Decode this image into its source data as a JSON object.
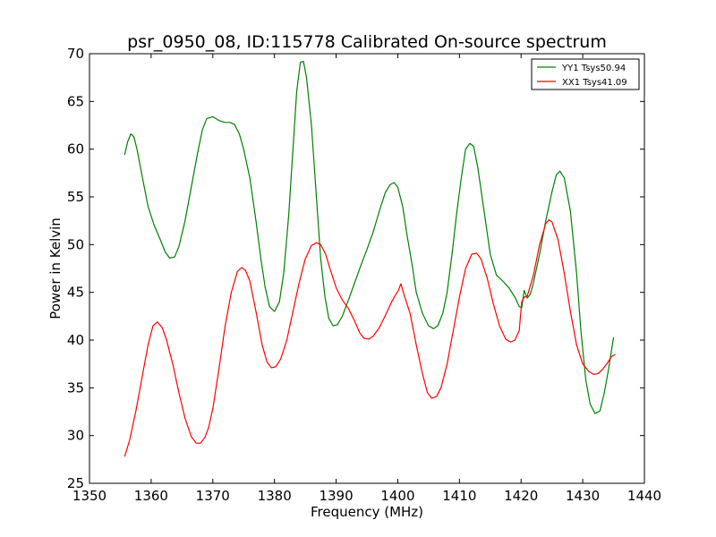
{
  "chart_data": {
    "type": "line",
    "title": "psr_0950_08, ID:115778 Calibrated On-source spectrum",
    "xlabel": "Frequency (MHz)",
    "ylabel": "Power in Kelvin",
    "xlim": [
      1350,
      1440
    ],
    "ylim": [
      25,
      70
    ],
    "xticks": [
      1350,
      1360,
      1370,
      1380,
      1390,
      1400,
      1410,
      1420,
      1430,
      1440
    ],
    "yticks": [
      25,
      30,
      35,
      40,
      45,
      50,
      55,
      60,
      65,
      70
    ],
    "grid": false,
    "legend_position": "top-right",
    "series": [
      {
        "name": "YY1 Tsys50.94",
        "color": "#008000",
        "x": [
          1355.7,
          1356.2,
          1356.7,
          1357.2,
          1357.7,
          1358.5,
          1359.5,
          1360.5,
          1361.5,
          1362.3,
          1363.0,
          1363.8,
          1364.5,
          1365.5,
          1366.5,
          1367.5,
          1368.3,
          1369.0,
          1370.0,
          1371.0,
          1372.0,
          1372.8,
          1373.5,
          1374.3,
          1375.0,
          1376.0,
          1377.0,
          1377.8,
          1378.5,
          1379.2,
          1380.0,
          1380.8,
          1381.5,
          1382.3,
          1383.0,
          1383.6,
          1384.2,
          1384.7,
          1385.2,
          1386.0,
          1386.8,
          1387.5,
          1388.2,
          1388.8,
          1389.5,
          1390.2,
          1391.0,
          1392.0,
          1393.0,
          1394.0,
          1395.0,
          1396.0,
          1397.0,
          1398.0,
          1398.8,
          1399.4,
          1400.0,
          1400.8,
          1401.5,
          1402.3,
          1403.0,
          1404.0,
          1405.0,
          1405.8,
          1406.5,
          1407.3,
          1408.0,
          1408.8,
          1409.5,
          1410.3,
          1411.0,
          1411.7,
          1412.3,
          1413.0,
          1414.0,
          1415.0,
          1416.0,
          1417.0,
          1418.0,
          1419.0,
          1419.7,
          1420.1,
          1420.5,
          1421.0,
          1421.5,
          1422.0,
          1423.0,
          1424.0,
          1425.0,
          1425.7,
          1426.3,
          1427.0,
          1428.0,
          1429.0,
          1429.7,
          1430.5,
          1431.2,
          1432.0,
          1432.8,
          1433.5,
          1434.2,
          1435.0
        ],
        "values": [
          59.4,
          60.8,
          61.6,
          61.3,
          60.0,
          57.3,
          54.0,
          52.0,
          50.5,
          49.2,
          48.6,
          48.7,
          49.8,
          52.5,
          56.0,
          59.5,
          62.0,
          63.2,
          63.4,
          63.0,
          62.8,
          62.8,
          62.6,
          61.6,
          60.0,
          57.0,
          52.5,
          48.5,
          45.5,
          43.5,
          43.0,
          44.0,
          47.0,
          53.0,
          60.0,
          66.0,
          69.1,
          69.2,
          67.5,
          62.5,
          55.0,
          48.5,
          44.5,
          42.3,
          41.5,
          41.6,
          42.5,
          44.2,
          46.0,
          47.8,
          49.5,
          51.3,
          53.5,
          55.5,
          56.3,
          56.5,
          56.0,
          54.0,
          51.0,
          48.0,
          45.0,
          42.8,
          41.5,
          41.2,
          41.5,
          42.8,
          45.0,
          49.0,
          53.0,
          57.0,
          60.0,
          60.6,
          60.3,
          58.0,
          53.5,
          49.0,
          46.8,
          46.2,
          45.5,
          44.5,
          43.5,
          43.4,
          45.2,
          44.4,
          44.8,
          46.0,
          49.0,
          52.5,
          55.5,
          57.3,
          57.7,
          57.0,
          53.5,
          47.0,
          41.0,
          35.8,
          33.3,
          32.3,
          32.6,
          34.5,
          37.0,
          40.3
        ]
      },
      {
        "name": "XX1 Tsys41.09",
        "color": "#ff0000",
        "x": [
          1355.7,
          1356.5,
          1357.5,
          1358.5,
          1359.5,
          1360.3,
          1361.0,
          1361.8,
          1362.5,
          1363.5,
          1364.5,
          1365.5,
          1366.5,
          1367.3,
          1368.0,
          1368.7,
          1369.3,
          1370.0,
          1371.0,
          1372.0,
          1373.0,
          1374.0,
          1374.7,
          1375.3,
          1376.0,
          1377.0,
          1378.0,
          1378.8,
          1379.5,
          1380.2,
          1381.0,
          1382.0,
          1383.0,
          1384.0,
          1385.0,
          1386.0,
          1386.8,
          1387.5,
          1388.3,
          1389.0,
          1390.0,
          1391.0,
          1392.0,
          1393.0,
          1393.8,
          1394.5,
          1395.3,
          1396.0,
          1397.0,
          1398.0,
          1399.0,
          1399.7,
          1400.1,
          1400.5,
          1401.0,
          1402.0,
          1403.0,
          1404.0,
          1404.8,
          1405.5,
          1406.3,
          1407.0,
          1408.0,
          1409.0,
          1410.0,
          1411.0,
          1412.0,
          1412.8,
          1413.5,
          1414.5,
          1415.5,
          1416.5,
          1417.5,
          1418.3,
          1419.0,
          1419.7,
          1420.1,
          1420.5,
          1421.0,
          1422.0,
          1423.0,
          1424.0,
          1424.5,
          1425.0,
          1426.0,
          1427.0,
          1428.0,
          1429.0,
          1430.0,
          1431.0,
          1431.8,
          1432.5,
          1433.3,
          1434.0,
          1434.7,
          1435.3
        ],
        "values": [
          27.8,
          29.5,
          32.5,
          36.0,
          39.5,
          41.5,
          41.9,
          41.3,
          40.0,
          37.5,
          34.5,
          31.8,
          29.9,
          29.2,
          29.2,
          29.8,
          30.8,
          32.8,
          37.0,
          41.5,
          45.0,
          47.2,
          47.6,
          47.3,
          46.2,
          43.0,
          39.5,
          37.7,
          37.1,
          37.2,
          38.0,
          40.0,
          43.0,
          46.0,
          48.5,
          49.9,
          50.2,
          50.0,
          49.0,
          47.5,
          45.5,
          44.2,
          43.3,
          42.0,
          40.8,
          40.2,
          40.1,
          40.4,
          41.3,
          42.6,
          44.0,
          44.8,
          45.2,
          45.9,
          44.8,
          42.8,
          39.5,
          36.5,
          34.5,
          33.9,
          34.1,
          35.0,
          37.5,
          41.0,
          44.5,
          47.5,
          49.0,
          49.1,
          48.5,
          46.5,
          43.8,
          41.5,
          40.1,
          39.8,
          40.0,
          41.0,
          44.0,
          44.5,
          44.6,
          46.8,
          50.0,
          52.2,
          52.6,
          52.4,
          50.5,
          47.0,
          43.0,
          39.5,
          37.5,
          36.7,
          36.4,
          36.5,
          37.0,
          37.6,
          38.3,
          38.5
        ]
      }
    ]
  }
}
